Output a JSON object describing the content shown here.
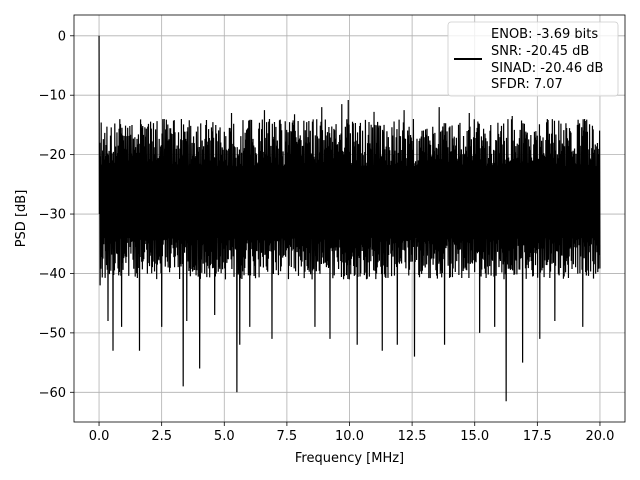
{
  "chart_data": {
    "type": "line",
    "title": "",
    "xlabel": "Frequency [MHz]",
    "ylabel": "PSD [dB]",
    "xlim": [
      -1.0,
      21.0
    ],
    "ylim": [
      -65,
      3.5
    ],
    "xticks": [
      0.0,
      2.5,
      5.0,
      7.5,
      10.0,
      12.5,
      15.0,
      17.5,
      20.0
    ],
    "xtick_labels": [
      "0.0",
      "2.5",
      "5.0",
      "7.5",
      "10.0",
      "12.5",
      "15.0",
      "17.5",
      "20.0"
    ],
    "yticks": [
      0,
      -10,
      -20,
      -30,
      -40,
      -50,
      -60
    ],
    "ytick_labels": [
      "0",
      "−10",
      "−20",
      "−30",
      "−40",
      "−50",
      "−60"
    ],
    "grid": true,
    "legend_position": "top-right",
    "legend_entries": [
      "ENOB: -3.69 bits",
      "SNR: -20.45 dB",
      "SINAD: -20.46 dB",
      "SFDR: 7.07"
    ],
    "line_color": "#000000",
    "series_description": "noise floor PSD, single tone at 0 MHz",
    "x_range": [
      0.0,
      20.0
    ],
    "peak": {
      "x": 0.0,
      "y": 0.0
    },
    "noise_band_upper": [
      -13,
      -12
    ],
    "noise_band_lower": [
      -36,
      -34
    ],
    "spikes": [
      {
        "x": 0.35,
        "y": -48
      },
      {
        "x": 0.55,
        "y": -53
      },
      {
        "x": 0.9,
        "y": -49
      },
      {
        "x": 1.6,
        "y": -53
      },
      {
        "x": 2.5,
        "y": -49
      },
      {
        "x": 3.35,
        "y": -59
      },
      {
        "x": 3.5,
        "y": -48
      },
      {
        "x": 4.0,
        "y": -56
      },
      {
        "x": 4.6,
        "y": -47
      },
      {
        "x": 5.5,
        "y": -60
      },
      {
        "x": 5.6,
        "y": -52
      },
      {
        "x": 6.0,
        "y": -49
      },
      {
        "x": 6.9,
        "y": -51
      },
      {
        "x": 8.6,
        "y": -49
      },
      {
        "x": 9.2,
        "y": -51
      },
      {
        "x": 10.3,
        "y": -52
      },
      {
        "x": 11.3,
        "y": -53
      },
      {
        "x": 11.9,
        "y": -52
      },
      {
        "x": 12.6,
        "y": -54
      },
      {
        "x": 13.8,
        "y": -52
      },
      {
        "x": 15.2,
        "y": -50
      },
      {
        "x": 15.8,
        "y": -49
      },
      {
        "x": 16.25,
        "y": -61.5
      },
      {
        "x": 16.9,
        "y": -55
      },
      {
        "x": 17.6,
        "y": -51
      },
      {
        "x": 18.2,
        "y": -48
      },
      {
        "x": 19.3,
        "y": -49
      }
    ],
    "tall_peaks": [
      {
        "x": 9.95,
        "y": -10.8
      },
      {
        "x": 9.7,
        "y": -11.5
      },
      {
        "x": 8.9,
        "y": -12
      },
      {
        "x": 6.6,
        "y": -12.5
      },
      {
        "x": 3.3,
        "y": -14
      },
      {
        "x": 2.6,
        "y": -14
      },
      {
        "x": 13.6,
        "y": -12
      },
      {
        "x": 12.2,
        "y": -12.5
      },
      {
        "x": 14.8,
        "y": -13
      },
      {
        "x": 5.3,
        "y": -13
      },
      {
        "x": 7.8,
        "y": -13.2
      },
      {
        "x": 11.0,
        "y": -12.8
      },
      {
        "x": 16.5,
        "y": -13.5
      },
      {
        "x": 17.9,
        "y": -14
      },
      {
        "x": 19.4,
        "y": -14
      }
    ]
  }
}
